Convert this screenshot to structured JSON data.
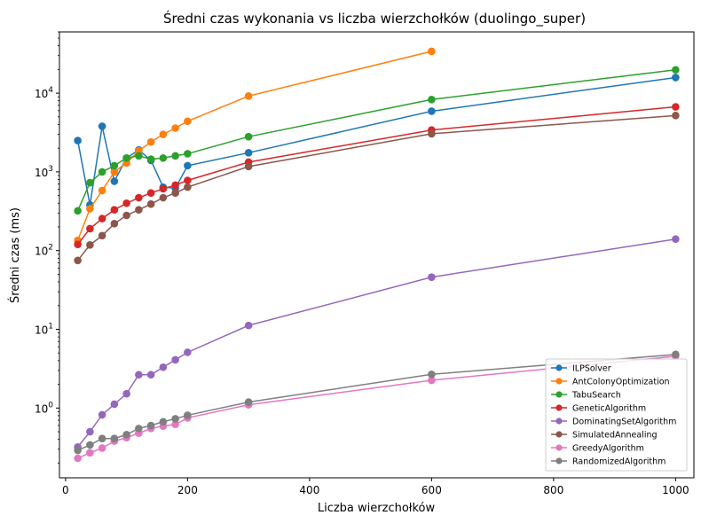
{
  "chart_data": {
    "type": "line",
    "title": "Średni czas wykonania vs liczba wierzchołków (duolingo_super)",
    "xlabel": "Liczba wierzchołków",
    "ylabel": "Średni czas (ms)",
    "xlim": [
      -10,
      1030
    ],
    "ylim": [
      0.13,
      60000
    ],
    "yscale": "log",
    "xticks": [
      0,
      200,
      400,
      600,
      800,
      1000
    ],
    "yticks": [
      {
        "value": 1,
        "mant": "10",
        "exp": "0"
      },
      {
        "value": 10,
        "mant": "10",
        "exp": "1"
      },
      {
        "value": 100,
        "mant": "10",
        "exp": "2"
      },
      {
        "value": 1000,
        "mant": "10",
        "exp": "3"
      },
      {
        "value": 10000,
        "mant": "10",
        "exp": "4"
      }
    ],
    "grid": false,
    "legend_position": "lower-right",
    "series": [
      {
        "name": "ILPSolver",
        "color": "#1f77b4",
        "x": [
          20,
          40,
          60,
          80,
          100,
          120,
          140,
          160,
          180,
          200,
          300,
          600,
          1000
        ],
        "y": [
          2500,
          380,
          3800,
          760,
          1500,
          1900,
          1400,
          640,
          620,
          1200,
          1750,
          5900,
          15800
        ]
      },
      {
        "name": "AntColonyOptimization",
        "color": "#ff7f0e",
        "x": [
          20,
          40,
          60,
          80,
          100,
          120,
          140,
          160,
          180,
          200,
          300,
          600
        ],
        "y": [
          135,
          340,
          580,
          1000,
          1300,
          1850,
          2400,
          3000,
          3600,
          4400,
          9200,
          34000
        ]
      },
      {
        "name": "TabuSearch",
        "color": "#2ca02c",
        "x": [
          20,
          40,
          60,
          80,
          100,
          120,
          140,
          160,
          180,
          200,
          300,
          600,
          1000
        ],
        "y": [
          320,
          730,
          1000,
          1200,
          1500,
          1600,
          1450,
          1500,
          1600,
          1700,
          2800,
          8300,
          19800
        ]
      },
      {
        "name": "GeneticAlgorithm",
        "color": "#d62728",
        "x": [
          20,
          40,
          60,
          80,
          100,
          120,
          140,
          160,
          180,
          200,
          300,
          600,
          1000
        ],
        "y": [
          120,
          190,
          255,
          330,
          400,
          470,
          540,
          610,
          680,
          780,
          1330,
          3400,
          6700
        ]
      },
      {
        "name": "DominatingSetAlgorithm",
        "color": "#9467bd",
        "x": [
          20,
          40,
          60,
          80,
          100,
          120,
          140,
          160,
          180,
          200,
          300,
          600,
          1000
        ],
        "y": [
          0.32,
          0.5,
          0.82,
          1.12,
          1.52,
          2.65,
          2.65,
          3.3,
          4.1,
          5.1,
          11.2,
          46,
          140
        ]
      },
      {
        "name": "SimulatedAnnealing",
        "color": "#8c564b",
        "x": [
          20,
          40,
          60,
          80,
          100,
          120,
          140,
          160,
          180,
          200,
          300,
          600,
          1000
        ],
        "y": [
          75,
          118,
          155,
          220,
          280,
          330,
          390,
          470,
          540,
          640,
          1170,
          3050,
          5200
        ]
      },
      {
        "name": "GreedyAlgorithm",
        "color": "#e377c2",
        "x": [
          20,
          40,
          60,
          80,
          100,
          120,
          140,
          160,
          180,
          200,
          300,
          600,
          1000
        ],
        "y": [
          0.23,
          0.27,
          0.31,
          0.38,
          0.42,
          0.48,
          0.55,
          0.59,
          0.62,
          0.75,
          1.1,
          2.25,
          4.55
        ]
      },
      {
        "name": "RandomizedAlgorithm",
        "color": "#7f7f7f",
        "x": [
          20,
          40,
          60,
          80,
          100,
          120,
          140,
          160,
          180,
          200,
          300,
          600,
          1000
        ],
        "y": [
          0.29,
          0.34,
          0.41,
          0.41,
          0.46,
          0.55,
          0.6,
          0.67,
          0.73,
          0.81,
          1.19,
          2.68,
          4.8
        ]
      }
    ]
  }
}
